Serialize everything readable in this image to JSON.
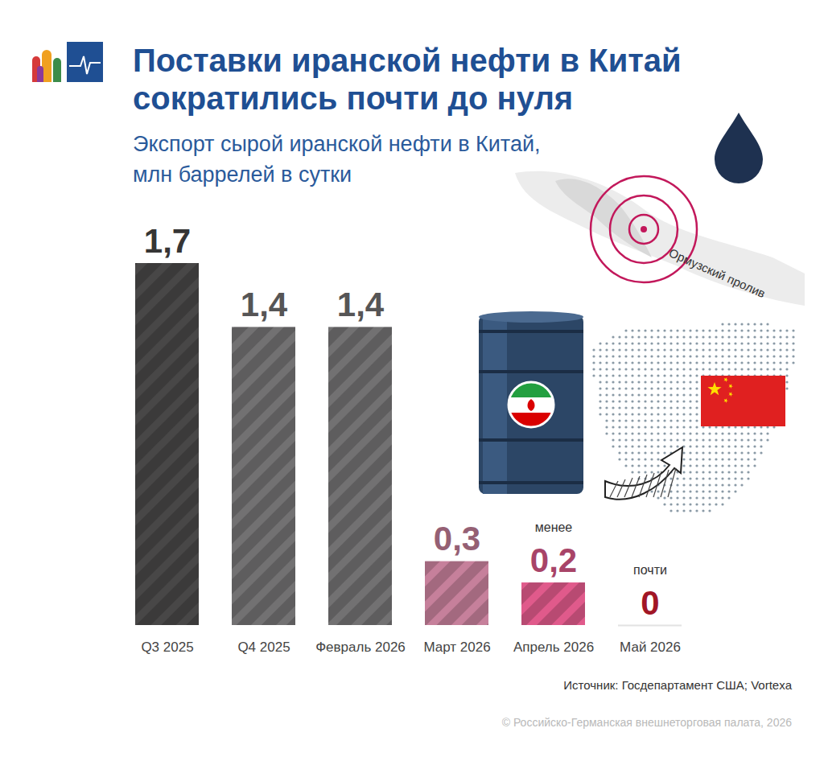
{
  "chart_data": {
    "type": "bar",
    "title": "Поставки иранской нефти в Китай сократились почти до нуля",
    "subtitle": "Экспорт сырой иранской нефти в Китай, млн баррелей в сутки",
    "categories": [
      "Q3 2025",
      "Q4 2025",
      "Февраль 2026",
      "Март 2026",
      "Апрель 2026",
      "Май 2026"
    ],
    "values": [
      1.7,
      1.4,
      1.4,
      0.3,
      0.2,
      0
    ],
    "value_labels": [
      "1,7",
      "1,4",
      "1,4",
      "0,3",
      "0,2",
      "0"
    ],
    "colors": [
      "#3b3a3a",
      "#5e5d5e",
      "#5e5d5e",
      "#a3697f",
      "#b84a72",
      "#b0182a"
    ],
    "data_labels": true,
    "tick_labels": "x",
    "ylim": [
      0,
      1.7
    ],
    "annotations": [
      {
        "category": "Апрель 2026",
        "text": "менее"
      },
      {
        "category": "Май 2026",
        "text": "почти"
      },
      {
        "text": "Ормузский пролив"
      }
    ],
    "source": "Источник: Госдепартамент США; Vortexa",
    "copyright": "© Российско-Германская внешнеторговая палата, 2026"
  }
}
